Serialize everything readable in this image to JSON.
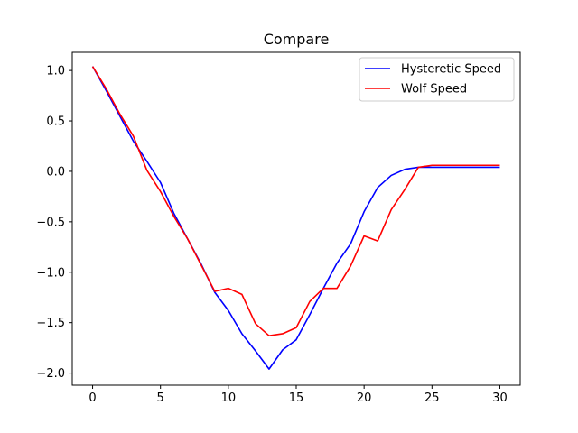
{
  "chart_data": {
    "type": "line",
    "title": "Compare",
    "xlabel": "",
    "ylabel": "",
    "xlim": [
      -1.5,
      31.5
    ],
    "ylim": [
      -2.12,
      1.18
    ],
    "xticks": [
      0,
      5,
      10,
      15,
      20,
      25,
      30
    ],
    "yticks": [
      1.0,
      0.5,
      0.0,
      -0.5,
      -1.0,
      -1.5,
      -2.0
    ],
    "ytick_labels": [
      "1.0",
      "0.5",
      "0.0",
      "−0.5",
      "−1.0",
      "−1.5",
      "−2.0"
    ],
    "grid": false,
    "legend_position": "top-right",
    "x": [
      0,
      1,
      2,
      3,
      4,
      5,
      6,
      7,
      8,
      9,
      10,
      11,
      12,
      13,
      14,
      15,
      16,
      17,
      18,
      19,
      20,
      21,
      22,
      23,
      24,
      25,
      26,
      27,
      28,
      29,
      30
    ],
    "series": [
      {
        "name": "Hysteretic Speed",
        "color": "#0000ff",
        "values": [
          1.04,
          0.8,
          0.55,
          0.3,
          0.1,
          -0.11,
          -0.42,
          -0.67,
          -0.92,
          -1.2,
          -1.38,
          -1.61,
          -1.78,
          -1.96,
          -1.77,
          -1.67,
          -1.42,
          -1.16,
          -0.91,
          -0.72,
          -0.4,
          -0.16,
          -0.04,
          0.02,
          0.04,
          0.04,
          0.04,
          0.04,
          0.04,
          0.04,
          0.04
        ]
      },
      {
        "name": "Wolf Speed",
        "color": "#ff0000",
        "values": [
          1.04,
          0.82,
          0.57,
          0.35,
          0.01,
          -0.2,
          -0.45,
          -0.67,
          -0.93,
          -1.19,
          -1.16,
          -1.22,
          -1.51,
          -1.63,
          -1.61,
          -1.55,
          -1.29,
          -1.16,
          -1.16,
          -0.94,
          -0.64,
          -0.69,
          -0.38,
          -0.18,
          0.04,
          0.06,
          0.06,
          0.06,
          0.06,
          0.06,
          0.06
        ]
      }
    ]
  }
}
